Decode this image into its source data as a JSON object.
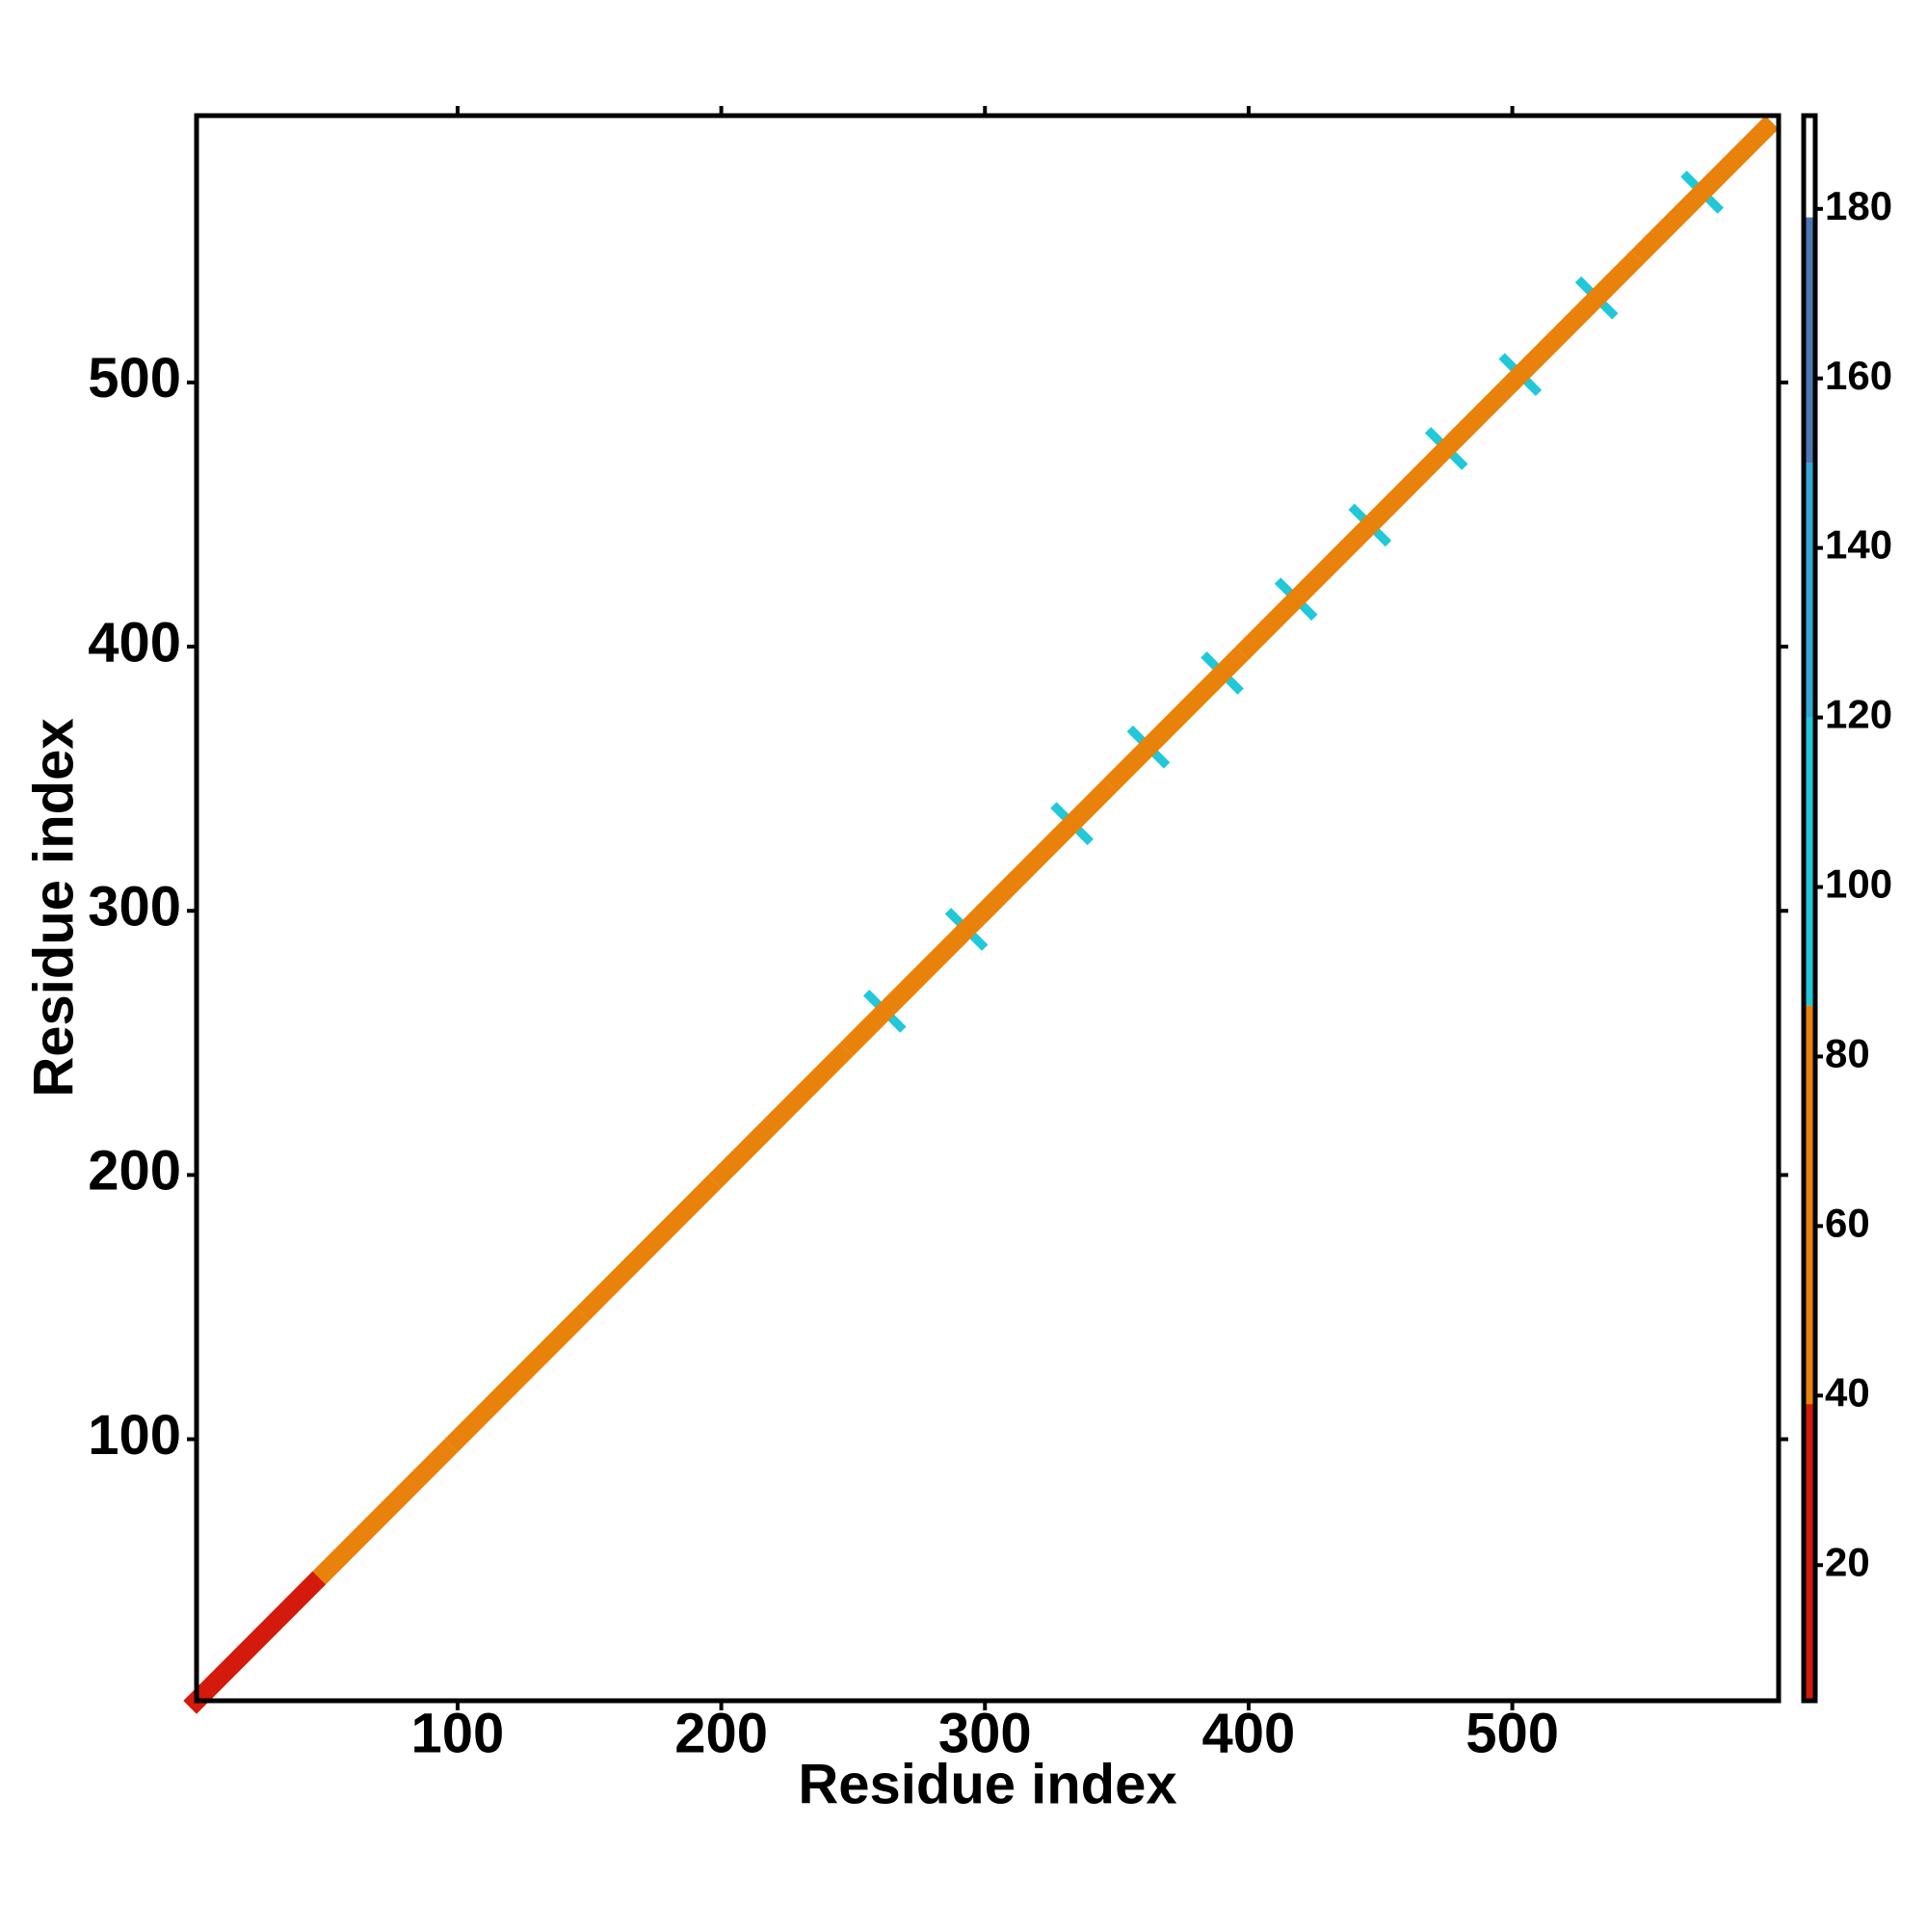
{
  "chart_data": {
    "type": "heatmap",
    "xlabel": "Residue index",
    "ylabel": "Residue index",
    "xlim": [
      1,
      601
    ],
    "ylim": [
      1,
      601
    ],
    "xticks": [
      100,
      200,
      300,
      400,
      500
    ],
    "yticks": [
      100,
      200,
      300,
      400,
      500
    ],
    "diagonal": {
      "x": [
        1,
        50,
        100,
        150,
        200,
        250,
        300,
        350,
        400,
        450,
        500,
        550,
        601
      ],
      "values": [
        35,
        60,
        55,
        70,
        45,
        40,
        65,
        60,
        55,
        60,
        65,
        70
      ]
    },
    "crosses": {
      "x": [
        262,
        293,
        333,
        362,
        390,
        418,
        446,
        475,
        503,
        532,
        572
      ],
      "values": [
        115,
        115,
        115,
        115,
        115,
        115,
        115,
        115,
        115,
        115,
        115
      ]
    },
    "colorbar": {
      "lim": [
        4,
        191
      ],
      "ticks": [
        20,
        40,
        60,
        80,
        100,
        120,
        140,
        160,
        180
      ],
      "bins": [
        4,
        39,
        86,
        120,
        150,
        179,
        191
      ],
      "colors": [
        "#d41a0a",
        "#e8820a",
        "#20c8d8",
        "#34a8d4",
        "#4a78b4",
        "#ffffff"
      ]
    }
  }
}
